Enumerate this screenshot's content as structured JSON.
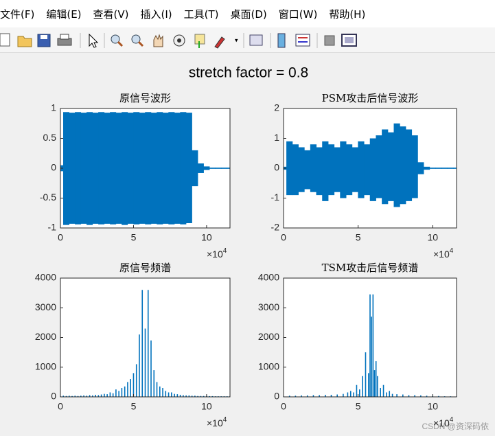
{
  "menu": [
    "文件(F)",
    "编辑(E)",
    "查看(V)",
    "插入(I)",
    "工具(T)",
    "桌面(D)",
    "窗口(W)",
    "帮助(H)"
  ],
  "figure": {
    "title": "stretch factor = 0.8"
  },
  "watermark": "CSDN @资深码侬",
  "chart_data": [
    {
      "type": "waveform",
      "title": "原信号波形",
      "color": "#0072bd",
      "x": [
        0,
        4000,
        8000,
        12000,
        16000,
        20000,
        24000,
        28000,
        32000,
        36000,
        40000,
        44000,
        48000,
        52000,
        56000,
        60000,
        64000,
        68000,
        72000,
        76000,
        80000,
        84000,
        88000,
        92000,
        96000,
        100000,
        104000,
        108000,
        112000,
        116000
      ],
      "max": [
        0.05,
        0.94,
        0.93,
        0.94,
        0.93,
        0.94,
        0.93,
        0.94,
        0.93,
        0.94,
        0.93,
        0.94,
        0.93,
        0.94,
        0.93,
        0.94,
        0.93,
        0.94,
        0.93,
        0.94,
        0.93,
        0.94,
        0.93,
        0.3,
        0.08,
        0.03,
        0.01,
        0.01,
        0.01,
        0.01
      ],
      "min": [
        -0.05,
        -0.95,
        -0.93,
        -0.94,
        -0.93,
        -0.95,
        -0.93,
        -0.94,
        -0.93,
        -0.94,
        -0.93,
        -0.95,
        -0.93,
        -0.94,
        -0.93,
        -0.94,
        -0.93,
        -0.94,
        -0.93,
        -0.94,
        -0.93,
        -0.94,
        -0.92,
        -0.3,
        -0.08,
        -0.03,
        -0.01,
        -0.01,
        -0.01,
        -0.01
      ],
      "xlim": [
        0,
        116000
      ],
      "ylim": [
        -1,
        1
      ],
      "xticks": [
        0,
        {
          "value": 50000,
          "label": "5"
        },
        {
          "value": 100000,
          "label": "10"
        }
      ],
      "yticks": [
        -1,
        -0.5,
        0,
        0.5,
        1
      ],
      "x_multiplier": "×10",
      "x_multiplier_exponent": "4"
    },
    {
      "type": "waveform",
      "title": "PSM攻击后信号波形",
      "color": "#0072bd",
      "x": [
        0,
        4000,
        8000,
        12000,
        16000,
        20000,
        24000,
        28000,
        32000,
        36000,
        40000,
        44000,
        48000,
        52000,
        56000,
        60000,
        64000,
        68000,
        72000,
        76000,
        80000,
        84000,
        88000,
        92000,
        96000,
        100000,
        104000,
        108000,
        112000,
        116000
      ],
      "max": [
        0.05,
        0.9,
        0.8,
        0.7,
        0.6,
        0.8,
        0.7,
        0.9,
        0.8,
        0.7,
        0.9,
        0.8,
        0.7,
        0.9,
        0.8,
        1.0,
        1.1,
        1.3,
        1.2,
        1.5,
        1.4,
        1.3,
        1.1,
        0.2,
        0.05,
        0.02,
        0.02,
        0.02,
        0.02,
        0.02
      ],
      "min": [
        -0.05,
        -0.9,
        -0.9,
        -0.8,
        -0.7,
        -0.8,
        -0.9,
        -1.1,
        -0.9,
        -0.8,
        -1.0,
        -0.9,
        -0.8,
        -1.0,
        -0.9,
        -1.1,
        -1.0,
        -1.2,
        -1.1,
        -1.3,
        -1.2,
        -1.1,
        -1.0,
        -0.2,
        -0.05,
        -0.02,
        -0.02,
        -0.02,
        -0.02,
        -0.02
      ],
      "xlim": [
        0,
        116000
      ],
      "ylim": [
        -2,
        2
      ],
      "xticks": [
        0,
        {
          "value": 50000,
          "label": "5"
        },
        {
          "value": 100000,
          "label": "10"
        }
      ],
      "yticks": [
        -2,
        -1,
        0,
        1,
        2
      ],
      "x_multiplier": "×10",
      "x_multiplier_exponent": "4"
    },
    {
      "type": "spectrum",
      "title": "原信号频谱",
      "color": "#0072bd",
      "x": [
        0,
        2000,
        4000,
        6000,
        8000,
        10000,
        12000,
        14000,
        16000,
        18000,
        20000,
        22000,
        24000,
        26000,
        28000,
        30000,
        32000,
        34000,
        36000,
        38000,
        40000,
        42000,
        44000,
        46000,
        48000,
        50000,
        52000,
        54000,
        56000,
        58000,
        60000,
        62000,
        64000,
        66000,
        68000,
        70000,
        72000,
        74000,
        76000,
        78000,
        80000,
        82000,
        84000,
        86000,
        88000,
        90000,
        92000,
        94000,
        96000,
        98000,
        100000,
        102000,
        104000,
        106000,
        108000,
        110000,
        112000,
        114000,
        116000
      ],
      "values": [
        30,
        40,
        30,
        40,
        30,
        40,
        30,
        40,
        50,
        40,
        60,
        50,
        70,
        60,
        80,
        100,
        90,
        150,
        120,
        250,
        200,
        300,
        350,
        500,
        600,
        800,
        1100,
        2100,
        3600,
        2300,
        3600,
        1900,
        900,
        500,
        350,
        300,
        200,
        150,
        150,
        100,
        90,
        70,
        60,
        50,
        50,
        40,
        40,
        30,
        30,
        30,
        30,
        25,
        25,
        20,
        20,
        20,
        20,
        20,
        20
      ],
      "xlim": [
        0,
        116000
      ],
      "ylim": [
        0,
        4000
      ],
      "xticks": [
        0,
        {
          "value": 50000,
          "label": "5"
        },
        {
          "value": 100000,
          "label": "10"
        }
      ],
      "yticks": [
        0,
        1000,
        2000,
        3000,
        4000
      ],
      "x_multiplier": "×10",
      "x_multiplier_exponent": "4"
    },
    {
      "type": "spectrum",
      "title": "TSM攻击后信号频谱",
      "color": "#0072bd",
      "x": [
        0,
        4000,
        8000,
        12000,
        16000,
        20000,
        24000,
        28000,
        32000,
        36000,
        40000,
        43000,
        45000,
        47000,
        49000,
        51000,
        53000,
        55000,
        57000,
        58000,
        59000,
        60000,
        61000,
        62000,
        63000,
        65000,
        67000,
        69000,
        71000,
        73000,
        76000,
        80000,
        84000,
        88000,
        92000,
        96000,
        100000,
        104000,
        108000,
        112000,
        116000
      ],
      "values": [
        30,
        40,
        40,
        50,
        50,
        60,
        60,
        70,
        70,
        80,
        100,
        150,
        200,
        150,
        400,
        250,
        700,
        1500,
        800,
        3450,
        2700,
        3450,
        900,
        1200,
        700,
        300,
        400,
        150,
        200,
        100,
        90,
        80,
        60,
        60,
        50,
        40,
        30,
        30,
        20,
        20,
        20
      ],
      "xlim": [
        0,
        116000
      ],
      "ylim": [
        0,
        4000
      ],
      "xticks": [
        0,
        {
          "value": 50000,
          "label": "5"
        },
        {
          "value": 100000,
          "label": "10"
        }
      ],
      "yticks": [
        0,
        1000,
        2000,
        3000,
        4000
      ],
      "x_multiplier": "×10",
      "x_multiplier_exponent": "4"
    }
  ]
}
